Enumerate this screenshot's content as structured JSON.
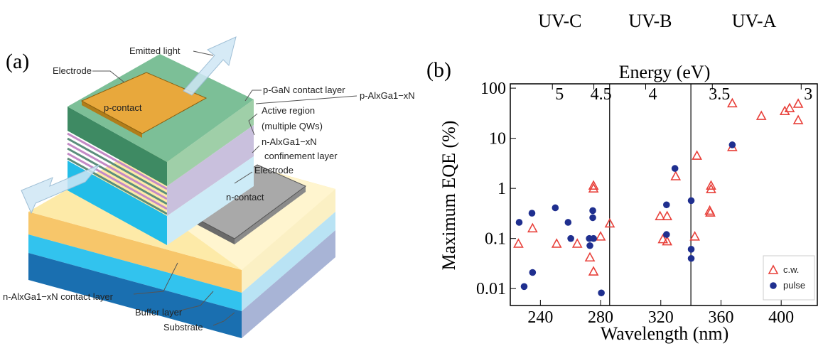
{
  "panel_a": {
    "panel_label": "(a)",
    "labels": [
      "Emitted light",
      "Electrode",
      "p-GaN contact layer",
      "p-AlxGa1−xN",
      "p-contact",
      "Active region",
      "(multiple QWs)",
      "n-AlxGa1−xN",
      "confinement layer",
      "Electrode",
      "n-contact",
      "n-AlxGa1−xN contact layer",
      "Buffer layer",
      "Substrate"
    ]
  },
  "chart_data": {
    "type": "scatter",
    "panel_label": "(b)",
    "x_label": "Wavelength (nm)",
    "y_label": "Maximum EQE (%)",
    "x2_label": "Energy (eV)",
    "regions": [
      "UV-C",
      "UV-B",
      "UV-A"
    ],
    "vlines": [
      286,
      340
    ],
    "xlim": [
      220,
      424
    ],
    "xticks": [
      240,
      280,
      320,
      360,
      400
    ],
    "x2ticks": [
      5,
      4.5,
      4,
      3.5,
      3
    ],
    "ylim": [
      0.0046,
      122
    ],
    "yticks": [
      0.01,
      0.1,
      1,
      10,
      100
    ],
    "log_y": true,
    "legend": "lower right",
    "series": [
      {
        "name": "c.w.",
        "color": "#e8403a",
        "marker": "triangle",
        "x": [
          225.4,
          234.8,
          250.8,
          264.5,
          272.9,
          275.3,
          275.3,
          275.3,
          280,
          286.1,
          319.5,
          324.2,
          321.4,
          324.2,
          329.9,
          344,
          342.6,
          353.4,
          353.4,
          352.5,
          352.9,
          367.5,
          367.5,
          386.8,
          402.4,
          405.6,
          411.3,
          411.3
        ],
        "values": [
          0.079,
          0.16,
          0.079,
          0.079,
          0.042,
          0.022,
          1.14,
          1.0,
          0.11,
          0.2,
          0.28,
          0.28,
          0.097,
          0.088,
          1.75,
          4.5,
          0.11,
          1.14,
          0.97,
          0.36,
          0.33,
          50,
          6.7,
          28,
          35,
          40,
          49,
          23
        ]
      },
      {
        "name": "pulse",
        "color": "#1f2f8f",
        "marker": "circle",
        "x": [
          225.9,
          229.2,
          234.8,
          234.4,
          249.9,
          258.4,
          260.2,
          274.8,
          274.8,
          272.5,
          275.3,
          272.9,
          280.5,
          323.8,
          323.8,
          329.4,
          340.2,
          340.2,
          340.2,
          367.5
        ],
        "values": [
          0.21,
          0.011,
          0.021,
          0.32,
          0.41,
          0.21,
          0.1,
          0.36,
          0.26,
          0.1,
          0.1,
          0.072,
          0.0082,
          0.12,
          0.47,
          2.5,
          0.57,
          0.061,
          0.04,
          7.4
        ]
      }
    ]
  }
}
